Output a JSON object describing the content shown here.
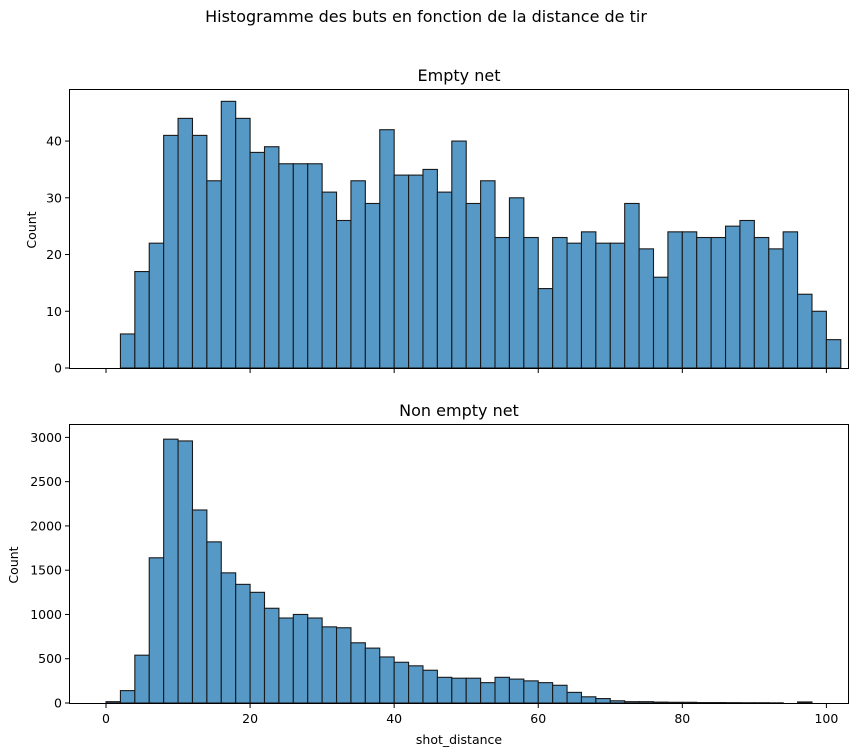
{
  "figure": {
    "suptitle": "Histogramme des buts en fonction de la distance de tir",
    "bar_color": "#5698c6",
    "edge_color": "#1a1a1a"
  },
  "chart_data": [
    {
      "type": "bar",
      "subtype": "histogram",
      "title": "Empty net",
      "xlabel": "",
      "ylabel": "Count",
      "xlim": [
        -5,
        103
      ],
      "ylim": [
        0,
        49
      ],
      "xticks": [
        0,
        20,
        40,
        60,
        80,
        100
      ],
      "xtick_labels_visible": false,
      "yticks": [
        0,
        10,
        20,
        30,
        40
      ],
      "bin_start": 2,
      "bin_width": 2,
      "values": [
        6,
        17,
        22,
        41,
        44,
        41,
        33,
        47,
        44,
        38,
        39,
        36,
        36,
        36,
        31,
        26,
        33,
        29,
        42,
        34,
        34,
        35,
        31,
        40,
        29,
        33,
        23,
        30,
        23,
        14,
        23,
        22,
        24,
        22,
        22,
        29,
        21,
        16,
        24,
        24,
        23,
        23,
        25,
        26,
        23,
        21,
        24,
        13,
        10,
        5
      ]
    },
    {
      "type": "bar",
      "subtype": "histogram",
      "title": "Non empty net",
      "xlabel": "shot_distance",
      "ylabel": "Count",
      "xlim": [
        -5,
        103
      ],
      "ylim": [
        0,
        3140
      ],
      "xticks": [
        0,
        20,
        40,
        60,
        80,
        100
      ],
      "xtick_labels_visible": true,
      "yticks": [
        0,
        500,
        1000,
        1500,
        2000,
        2500,
        3000
      ],
      "bin_start": 0,
      "bin_width": 2,
      "values": [
        15,
        140,
        540,
        1640,
        2980,
        2960,
        2180,
        1820,
        1470,
        1340,
        1250,
        1070,
        960,
        1000,
        960,
        860,
        850,
        680,
        620,
        520,
        460,
        420,
        370,
        290,
        280,
        280,
        230,
        290,
        270,
        250,
        230,
        200,
        120,
        70,
        50,
        25,
        15,
        15,
        10,
        8,
        8,
        5,
        5,
        4,
        3,
        3,
        2,
        0,
        12,
        0
      ]
    }
  ]
}
